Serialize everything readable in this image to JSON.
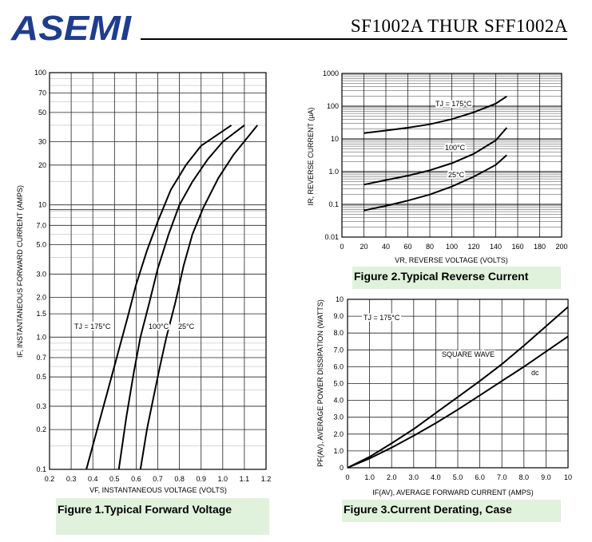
{
  "header": {
    "logo_text": "ASEMI",
    "logo_color": "#1f3d8f",
    "part_title": "SF1002A THUR SFF1002A"
  },
  "figures": {
    "fig1_caption": "Figure 1.Typical  Forward  Voltage",
    "fig2_caption": "Figure 2.Typical  Reverse  Current",
    "fig3_caption": "Figure 3.Current  Derating,  Case"
  },
  "chart_data": [
    {
      "type": "line",
      "ylabel": "IF, INSTANTANEOUS FORWARD CURRENT (AMPS)",
      "xlabel": "VF, INSTANTANEOUS VOLTAGE (VOLTS)",
      "x_scale": "linear",
      "y_scale": "log",
      "xlim": [
        0.2,
        1.2
      ],
      "ylim": [
        0.1,
        100
      ],
      "x_ticks": [
        "0.2",
        "0.3",
        "0.4",
        "0.5",
        "0.6",
        "0.7",
        "0.8",
        "0.9",
        "1.0",
        "1.1",
        "1.2"
      ],
      "y_ticks": [
        "0.1",
        "0.2",
        "0.3",
        "0.5",
        "0.7",
        "1.0",
        "1.5",
        "2.0",
        "3.0",
        "5.0",
        "7.0",
        "10",
        "20",
        "30",
        "50",
        "70",
        "100"
      ],
      "grid": true,
      "series": [
        {
          "name": "TJ = 175°C",
          "x": [
            0.37,
            0.42,
            0.47,
            0.52,
            0.56,
            0.6,
            0.65,
            0.7,
            0.76,
            0.83,
            0.9,
            1.04
          ],
          "y": [
            0.1,
            0.2,
            0.4,
            0.8,
            1.4,
            2.5,
            4.5,
            7.5,
            13,
            20,
            28,
            40
          ]
        },
        {
          "name": "100°C",
          "x": [
            0.52,
            0.555,
            0.59,
            0.62,
            0.66,
            0.7,
            0.75,
            0.8,
            0.86,
            0.93,
            1.0,
            1.1
          ],
          "y": [
            0.1,
            0.25,
            0.55,
            1.0,
            1.8,
            3.3,
            6.0,
            10,
            15,
            22,
            30,
            40
          ]
        },
        {
          "name": "25°C",
          "x": [
            0.62,
            0.65,
            0.68,
            0.71,
            0.74,
            0.78,
            0.82,
            0.86,
            0.91,
            0.98,
            1.05,
            1.16
          ],
          "y": [
            0.1,
            0.2,
            0.35,
            0.6,
            1.0,
            1.8,
            3.5,
            6.0,
            9.5,
            16,
            24,
            40
          ]
        }
      ],
      "annotations": [
        "TJ = 175°C",
        "100°C",
        "25°C"
      ]
    },
    {
      "type": "line",
      "ylabel": "IR, REVERSE CURRENT (µA)",
      "xlabel": "VR, REVERSE VOLTAGE (VOLTS)",
      "x_scale": "linear",
      "y_scale": "log",
      "xlim": [
        0,
        200
      ],
      "ylim": [
        0.01,
        1000
      ],
      "x_ticks": [
        "0",
        "20",
        "40",
        "60",
        "80",
        "100",
        "120",
        "140",
        "160",
        "180",
        "200"
      ],
      "y_ticks": [
        "0.01",
        "0.1",
        "1.0",
        "10",
        "100",
        "1000"
      ],
      "grid": true,
      "series": [
        {
          "name": "TJ = 175°C",
          "x": [
            20,
            40,
            60,
            80,
            100,
            120,
            140,
            150
          ],
          "y": [
            15,
            18,
            22,
            28,
            40,
            65,
            120,
            200
          ]
        },
        {
          "name": "100°C",
          "x": [
            20,
            40,
            60,
            80,
            100,
            120,
            140,
            150
          ],
          "y": [
            0.4,
            0.55,
            0.75,
            1.1,
            1.8,
            3.5,
            9,
            22
          ]
        },
        {
          "name": "25°C",
          "x": [
            20,
            40,
            60,
            80,
            100,
            120,
            140,
            150
          ],
          "y": [
            0.065,
            0.09,
            0.13,
            0.2,
            0.35,
            0.7,
            1.6,
            3.2
          ]
        }
      ],
      "annotations": [
        "TJ = 175°C",
        "100°C",
        "25°C"
      ]
    },
    {
      "type": "line",
      "ylabel": "PF(AV), AVERAGE POWER DISSIPATION (WATTS)",
      "xlabel": "IF(AV), AVERAGE FORWARD CURRENT (AMPS)",
      "x_scale": "linear",
      "y_scale": "linear",
      "xlim": [
        0,
        10
      ],
      "ylim": [
        0,
        10
      ],
      "x_ticks": [
        "0",
        "1.0",
        "2.0",
        "3.0",
        "4.0",
        "5.0",
        "6.0",
        "7.0",
        "8.0",
        "9.0",
        "10"
      ],
      "y_ticks": [
        "0",
        "1.0",
        "2.0",
        "3.0",
        "4.0",
        "5.0",
        "6.0",
        "7.0",
        "8.0",
        "9.0",
        "10"
      ],
      "grid": true,
      "series": [
        {
          "name": "SQUARE WAVE",
          "x": [
            0,
            1,
            2,
            3,
            4,
            5,
            6,
            7,
            8,
            9,
            10
          ],
          "y": [
            0,
            0.65,
            1.45,
            2.3,
            3.25,
            4.2,
            5.15,
            6.15,
            7.25,
            8.4,
            9.55
          ]
        },
        {
          "name": "dc",
          "x": [
            0,
            1,
            2,
            3,
            4,
            5,
            6,
            7,
            8,
            9,
            10
          ],
          "y": [
            0,
            0.55,
            1.2,
            1.9,
            2.65,
            3.45,
            4.3,
            5.15,
            6.0,
            6.9,
            7.8
          ]
        }
      ],
      "annotations": [
        "TJ = 175°C",
        "SQUARE WAVE",
        "dc"
      ]
    }
  ]
}
